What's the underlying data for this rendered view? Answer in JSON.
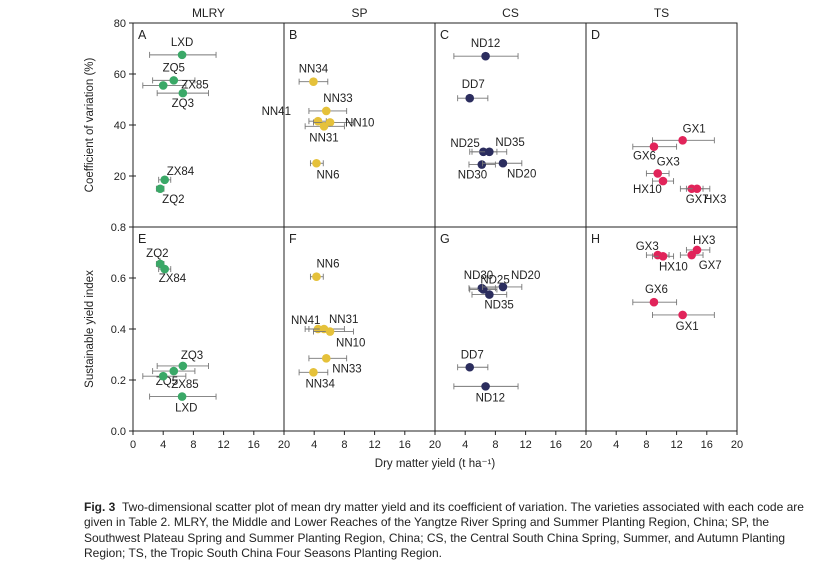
{
  "chart_data": {
    "type": "scatter",
    "columns": [
      "MLRY",
      "SP",
      "CS",
      "TS"
    ],
    "xlabel": "Dry matter yield (t ha⁻¹)",
    "x_ticks": [
      "0",
      "4",
      "8",
      "12",
      "16",
      "20",
      "4",
      "8",
      "12",
      "16",
      "20",
      "4",
      "8",
      "12",
      "16",
      "20",
      "4",
      "8",
      "12",
      "16",
      "20"
    ],
    "xlim": [
      0,
      20
    ],
    "rows": [
      {
        "ylabel": "Coefficient of variation (%)",
        "ylim": [
          0,
          80
        ],
        "y_ticks": [
          "0",
          "20",
          "40",
          "60",
          "80"
        ],
        "y_values": [
          0,
          20,
          40,
          60,
          80
        ]
      },
      {
        "ylabel": "Sustainable yield index",
        "ylim": [
          0,
          0.8
        ],
        "y_ticks": [
          "0.0",
          "0.2",
          "0.4",
          "0.6",
          "0.8"
        ],
        "y_values": [
          0,
          0.2,
          0.4,
          0.6,
          0.8
        ]
      }
    ],
    "panels": [
      {
        "letter": "A",
        "row": 0,
        "col": 0,
        "color": "#3aa867",
        "points": [
          {
            "label": "LXD",
            "x": 6.5,
            "y": 67.5,
            "xerr": [
              2.2,
              11.0
            ]
          },
          {
            "label": "ZQ5",
            "x": 5.4,
            "y": 57.5,
            "xerr": [
              2.6,
              8.2
            ]
          },
          {
            "label": "ZX85",
            "x": 4.0,
            "y": 55.5,
            "xerr": [
              1.3,
              7.0
            ]
          },
          {
            "label": "ZQ3",
            "x": 6.6,
            "y": 52.5,
            "xerr": [
              3.2,
              10.0
            ]
          },
          {
            "label": "ZX84",
            "x": 4.2,
            "y": 18.5,
            "xerr": [
              3.4,
              5.0
            ]
          },
          {
            "label": "ZQ2",
            "x": 3.6,
            "y": 15.0,
            "xerr": [
              3.1,
              4.1
            ]
          }
        ]
      },
      {
        "letter": "B",
        "row": 0,
        "col": 1,
        "color": "#e5c13a",
        "points": [
          {
            "label": "NN34",
            "x": 3.9,
            "y": 57.0,
            "xerr": [
              2.0,
              5.8
            ]
          },
          {
            "label": "NN33",
            "x": 5.6,
            "y": 45.5,
            "xerr": [
              3.3,
              8.3
            ]
          },
          {
            "label": "NN41",
            "x": 4.5,
            "y": 41.5,
            "xerr": [
              3.3,
              5.6
            ]
          },
          {
            "label": "NN10",
            "x": 6.1,
            "y": 41.0,
            "xerr": [
              3.9,
              9.2
            ]
          },
          {
            "label": "NN31",
            "x": 5.3,
            "y": 39.5,
            "xerr": [
              2.8,
              8.0
            ]
          },
          {
            "label": "NN6",
            "x": 4.3,
            "y": 25.0,
            "xerr": [
              3.5,
              5.2
            ]
          }
        ]
      },
      {
        "letter": "C",
        "row": 0,
        "col": 2,
        "color": "#2b2d5e",
        "points": [
          {
            "label": "ND12",
            "x": 6.7,
            "y": 67.0,
            "xerr": [
              2.5,
              11.0
            ]
          },
          {
            "label": "DD7",
            "x": 4.6,
            "y": 50.5,
            "xerr": [
              3.0,
              7.0
            ]
          },
          {
            "label": "ND25",
            "x": 6.4,
            "y": 29.5,
            "xerr": [
              4.6,
              8.2
            ]
          },
          {
            "label": "ND35",
            "x": 7.2,
            "y": 29.5,
            "xerr": [
              4.9,
              9.5
            ]
          },
          {
            "label": "ND30",
            "x": 6.2,
            "y": 24.5,
            "xerr": [
              4.5,
              8.0
            ]
          },
          {
            "label": "ND20",
            "x": 9.0,
            "y": 25.0,
            "xerr": [
              6.3,
              11.5
            ]
          }
        ]
      },
      {
        "letter": "D",
        "row": 0,
        "col": 3,
        "color": "#e1245a",
        "points": [
          {
            "label": "GX1",
            "x": 12.8,
            "y": 34.0,
            "xerr": [
              8.8,
              17.0
            ]
          },
          {
            "label": "GX6",
            "x": 9.0,
            "y": 31.5,
            "xerr": [
              6.2,
              12.0
            ]
          },
          {
            "label": "GX3",
            "x": 9.5,
            "y": 21.0,
            "xerr": [
              8.0,
              11.0
            ]
          },
          {
            "label": "HX10",
            "x": 10.2,
            "y": 18.0,
            "xerr": [
              8.8,
              11.6
            ]
          },
          {
            "label": "GX7",
            "x": 14.0,
            "y": 15.0,
            "xerr": [
              12.5,
              15.5
            ]
          },
          {
            "label": "HX3",
            "x": 14.7,
            "y": 15.0,
            "xerr": [
              13.3,
              16.4
            ]
          }
        ]
      },
      {
        "letter": "E",
        "row": 1,
        "col": 0,
        "color": "#3aa867",
        "points": [
          {
            "label": "ZQ2",
            "x": 3.6,
            "y": 0.655,
            "xerr": [
              3.1,
              4.1
            ]
          },
          {
            "label": "ZX84",
            "x": 4.2,
            "y": 0.635,
            "xerr": [
              3.4,
              5.0
            ]
          },
          {
            "label": "ZQ3",
            "x": 6.6,
            "y": 0.255,
            "xerr": [
              3.2,
              10.0
            ]
          },
          {
            "label": "ZQ5",
            "x": 5.4,
            "y": 0.235,
            "xerr": [
              2.6,
              8.2
            ]
          },
          {
            "label": "ZX85",
            "x": 4.0,
            "y": 0.215,
            "xerr": [
              1.3,
              7.0
            ]
          },
          {
            "label": "LXD",
            "x": 6.5,
            "y": 0.135,
            "xerr": [
              2.2,
              11.0
            ]
          }
        ]
      },
      {
        "letter": "F",
        "row": 1,
        "col": 1,
        "color": "#e5c13a",
        "points": [
          {
            "label": "NN6",
            "x": 4.3,
            "y": 0.605,
            "xerr": [
              3.5,
              5.2
            ]
          },
          {
            "label": "NN41",
            "x": 4.5,
            "y": 0.4,
            "xerr": [
              3.3,
              5.6
            ]
          },
          {
            "label": "NN31",
            "x": 5.3,
            "y": 0.4,
            "xerr": [
              2.8,
              8.0
            ]
          },
          {
            "label": "NN10",
            "x": 6.1,
            "y": 0.39,
            "xerr": [
              3.9,
              9.2
            ]
          },
          {
            "label": "NN33",
            "x": 5.6,
            "y": 0.285,
            "xerr": [
              3.3,
              8.3
            ]
          },
          {
            "label": "NN34",
            "x": 3.9,
            "y": 0.23,
            "xerr": [
              2.0,
              5.8
            ]
          }
        ]
      },
      {
        "letter": "G",
        "row": 1,
        "col": 2,
        "color": "#2b2d5e",
        "points": [
          {
            "label": "ND30",
            "x": 6.2,
            "y": 0.56,
            "xerr": [
              4.5,
              8.0
            ]
          },
          {
            "label": "ND25",
            "x": 6.4,
            "y": 0.555,
            "xerr": [
              4.6,
              8.2
            ]
          },
          {
            "label": "ND20",
            "x": 9.0,
            "y": 0.565,
            "xerr": [
              6.3,
              11.5
            ]
          },
          {
            "label": "ND35",
            "x": 7.2,
            "y": 0.535,
            "xerr": [
              4.9,
              9.5
            ]
          },
          {
            "label": "DD7",
            "x": 4.6,
            "y": 0.25,
            "xerr": [
              3.0,
              7.0
            ]
          },
          {
            "label": "ND12",
            "x": 6.7,
            "y": 0.175,
            "xerr": [
              2.5,
              11.0
            ]
          }
        ]
      },
      {
        "letter": "H",
        "row": 1,
        "col": 3,
        "color": "#e1245a",
        "points": [
          {
            "label": "HX3",
            "x": 14.7,
            "y": 0.71,
            "xerr": [
              13.3,
              16.4
            ]
          },
          {
            "label": "GX3",
            "x": 9.5,
            "y": 0.69,
            "xerr": [
              8.0,
              11.0
            ]
          },
          {
            "label": "HX10",
            "x": 10.2,
            "y": 0.685,
            "xerr": [
              8.8,
              11.6
            ]
          },
          {
            "label": "GX7",
            "x": 14.0,
            "y": 0.69,
            "xerr": [
              12.5,
              15.5
            ]
          },
          {
            "label": "GX6",
            "x": 9.0,
            "y": 0.505,
            "xerr": [
              6.2,
              12.0
            ]
          },
          {
            "label": "GX1",
            "x": 12.8,
            "y": 0.455,
            "xerr": [
              8.8,
              17.0
            ]
          }
        ]
      }
    ]
  },
  "caption": {
    "label": "Fig. 3",
    "text": "Two-dimensional scatter plot of mean dry matter yield and its coefficient of variation. The varieties associated with each code are given in Table 2. MLRY, the Middle and Lower Reaches of the Yangtze River Spring and Summer Planting Region, China; SP, the Southwest Plateau Spring and Summer Planting Region, China; CS, the Central South China Spring, Summer, and Autumn Planting Region; TS, the Tropic South China Four Seasons Planting Region."
  }
}
